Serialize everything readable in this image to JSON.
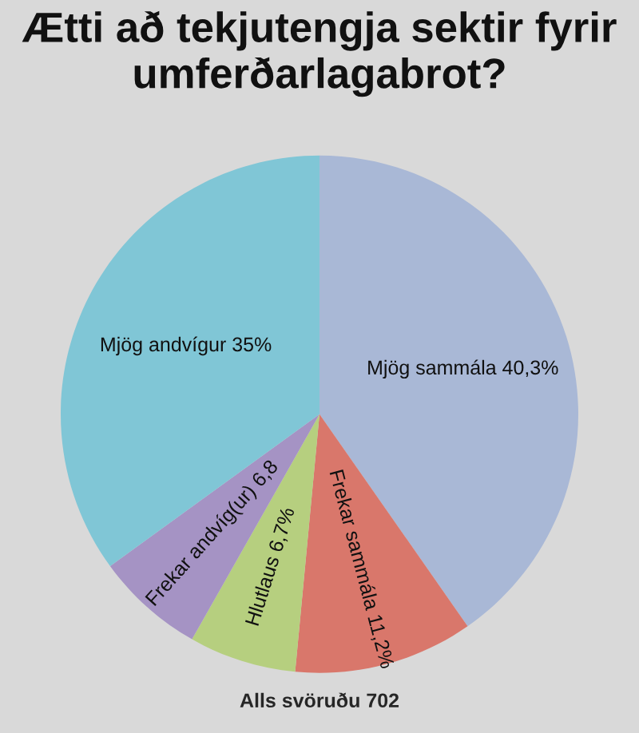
{
  "chart_data": {
    "type": "pie",
    "title": "Ætti að tekjutengja sektir fyrir umferðarlagabrot?",
    "categories": [
      "Mjög sammála",
      "Frekar sammála",
      "Hlutlaus",
      "Frekar andvíg(ur)",
      "Mjög andvígur"
    ],
    "values": [
      40.3,
      11.2,
      6.7,
      6.8,
      35
    ],
    "value_labels": [
      "40,3%",
      "11,2%",
      "6,7%",
      "6,8",
      "35%"
    ],
    "colors": [
      "#a9b8d6",
      "#d9776b",
      "#b6cf7f",
      "#a593c4",
      "#80c6d6"
    ],
    "annotations": [
      "Alls svöruðu 702"
    ]
  }
}
